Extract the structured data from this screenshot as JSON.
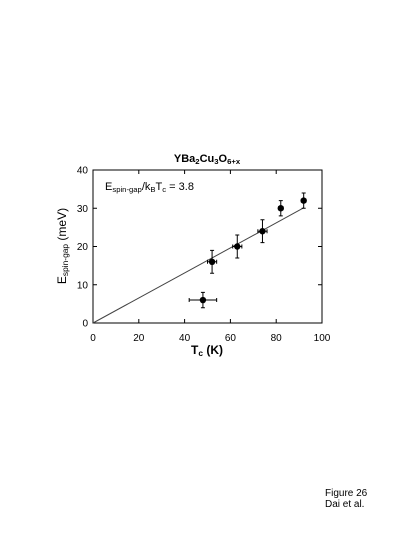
{
  "chart_data": {
    "type": "scatter",
    "title": [
      "YBa",
      "2",
      "Cu",
      "3",
      "O",
      "6+x"
    ],
    "x_label": [
      "T",
      "c",
      " (K)"
    ],
    "y_label": [
      "E",
      "spin-gap",
      " (meV)"
    ],
    "annotation": [
      "E",
      "spin-gap",
      "/k",
      "B",
      "T",
      "c",
      " = 3.8"
    ],
    "xlim": [
      0,
      100
    ],
    "xticks": [
      0,
      20,
      40,
      60,
      80,
      100
    ],
    "ylim": [
      0,
      40
    ],
    "yticks": [
      0,
      10,
      20,
      30,
      40
    ],
    "series": [
      {
        "color": "#000000",
        "x": [
          48,
          52,
          63,
          74,
          82,
          92
        ],
        "values": [
          6,
          16,
          20,
          24,
          30,
          32
        ],
        "xerr": [
          6,
          2,
          2,
          2,
          1,
          1
        ],
        "yerr": [
          2,
          3,
          3,
          3,
          2,
          2
        ]
      }
    ],
    "fit_line": {
      "color": "#444444",
      "x": [
        0,
        92
      ],
      "values": [
        0,
        30.1
      ]
    }
  },
  "footer": [
    "Figure 26",
    "Dai et al."
  ]
}
